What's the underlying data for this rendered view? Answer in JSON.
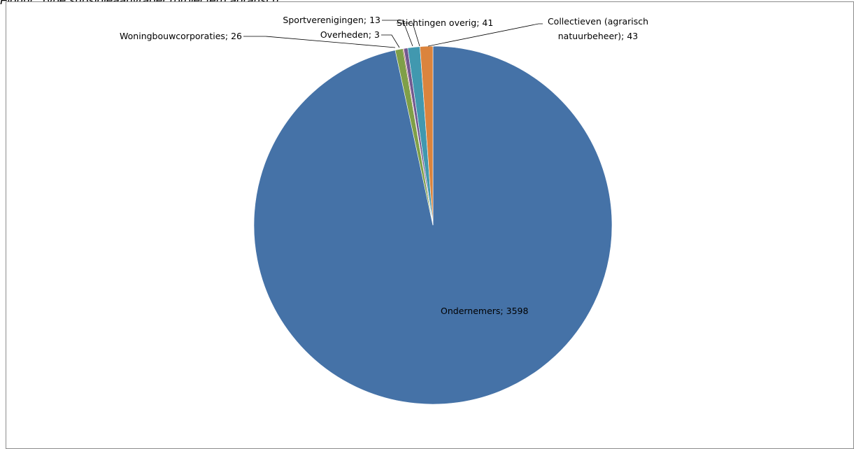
{
  "caption": "Figuur: Type subsidieaanvrager (projecten) agrarisch",
  "chart_data": {
    "type": "pie",
    "title": "",
    "slices": [
      {
        "label": "Ondernemers",
        "value": 3598,
        "display": "Ondernemers; 3598",
        "color": "#4572A7"
      },
      {
        "label": "Woningbouwcorporaties",
        "value": 26,
        "display": "Woningbouwcorporaties; 26",
        "color": "#7F9F48"
      },
      {
        "label": "Overheden",
        "value": 3,
        "display": "Overheden; 3",
        "color": "#AA4643"
      },
      {
        "label": "Sportverenigingen",
        "value": 13,
        "display": "Sportverenigingen; 13",
        "color": "#71588F"
      },
      {
        "label": "Stichtingen overig",
        "value": 41,
        "display": "Stichtingen overig; 41",
        "color": "#4198AF"
      },
      {
        "label": "Collectieven (agrarisch natuurbeheer)",
        "value": 43,
        "display": "Collectieven (agrarisch natuurbeheer); 43",
        "display_lines": [
          "Collectieven (agrarisch",
          "natuurbeheer); 43"
        ],
        "color": "#DB843D"
      }
    ],
    "legend": "none",
    "data_labels": "category; value"
  }
}
